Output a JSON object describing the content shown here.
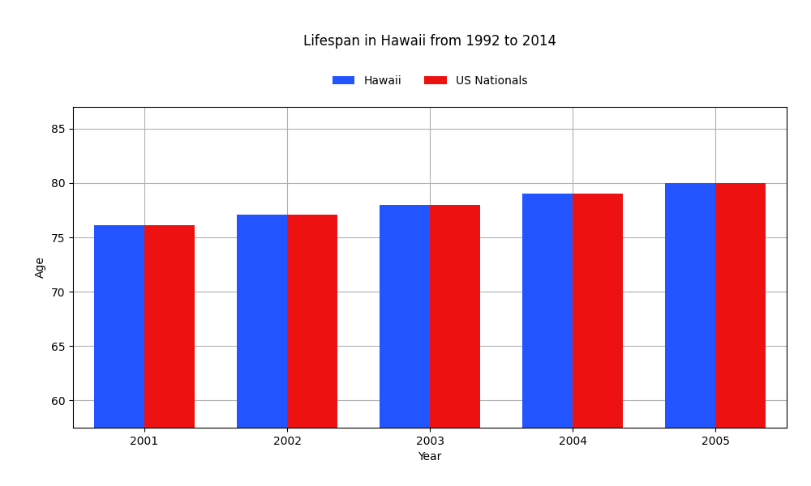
{
  "chart_data": {
    "type": "bar",
    "title": "Lifespan in Hawaii from 1992 to 2014",
    "x_label": "Year",
    "y_label": "Age",
    "categories": [
      "2001",
      "2002",
      "2003",
      "2004",
      "2005"
    ],
    "series": [
      {
        "name": "Hawaii",
        "color": "#2255ff",
        "values": [
          76.1,
          77.1,
          78.0,
          79.0,
          80.0
        ]
      },
      {
        "name": "US Nationals",
        "color": "#ee1111",
        "values": [
          76.1,
          77.1,
          78.0,
          79.0,
          80.0
        ]
      }
    ],
    "ylim": [
      57.5,
      87
    ],
    "yticks": [
      60,
      65,
      70,
      75,
      80,
      85
    ],
    "grid": true,
    "legend": "upper center"
  }
}
